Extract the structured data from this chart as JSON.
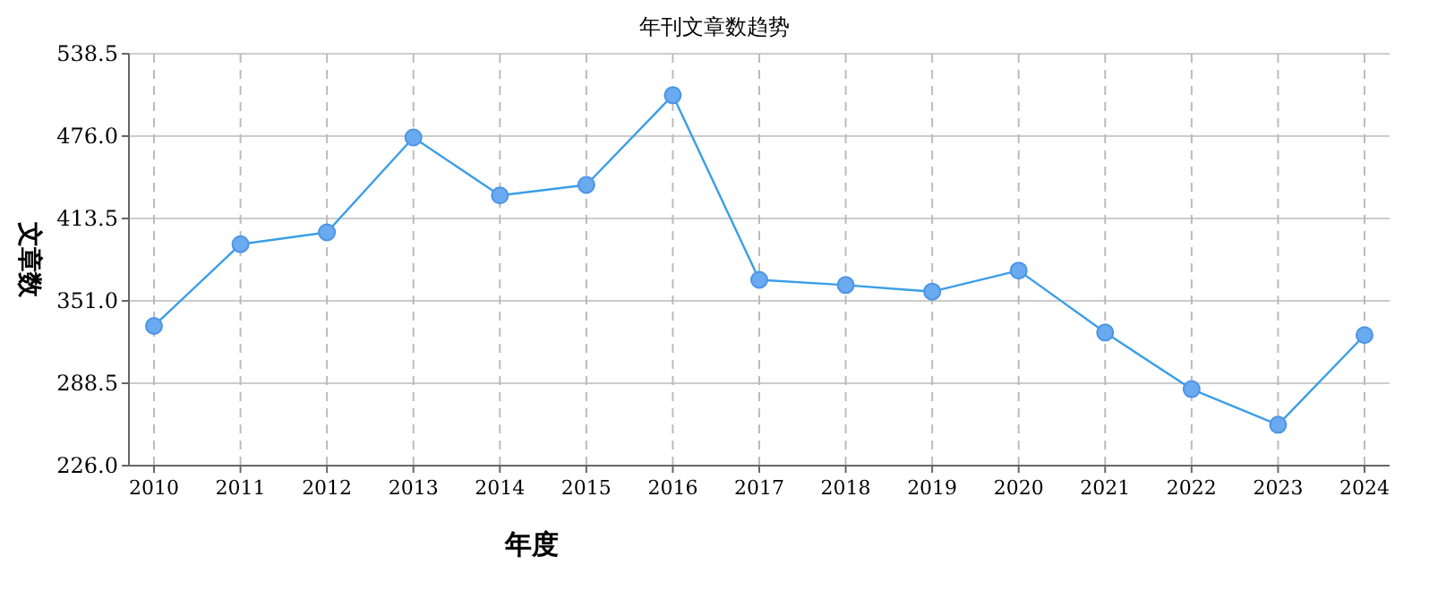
{
  "chart_data": {
    "type": "line",
    "title": "年刊文章数趋势",
    "xlabel": "年度",
    "ylabel": "文章数",
    "categories": [
      "2010",
      "2011",
      "2012",
      "2013",
      "2014",
      "2015",
      "2016",
      "2017",
      "2018",
      "2019",
      "2020",
      "2021",
      "2022",
      "2023",
      "2024"
    ],
    "values": [
      332,
      394,
      403,
      475,
      431,
      439,
      507,
      367,
      363,
      358,
      374,
      327,
      284,
      257,
      325
    ],
    "color": "#3a9ee8",
    "ylim": [
      226,
      538.5
    ],
    "yticks": [
      {
        "value": 226,
        "label": "226.0"
      },
      288.5,
      {
        "value": 351,
        "label": "351.0"
      },
      413.5,
      {
        "value": 476,
        "label": "476.0"
      },
      538.5
    ],
    "grid": true,
    "marker": "circle"
  }
}
